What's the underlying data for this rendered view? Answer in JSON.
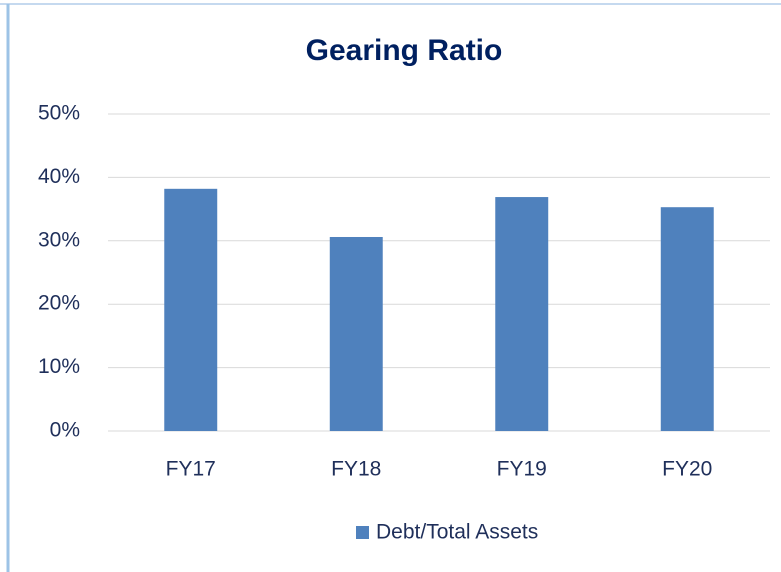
{
  "chart_data": {
    "type": "bar",
    "title": "Gearing Ratio",
    "categories": [
      "FY17",
      "FY18",
      "FY19",
      "FY20"
    ],
    "series": [
      {
        "name": "Debt/Total Assets",
        "color": "#4f81bd",
        "values": [
          38.2,
          30.6,
          36.9,
          35.3
        ]
      }
    ],
    "ylim": [
      0,
      50
    ],
    "yticks": [
      {
        "value": 0,
        "label": "0%"
      },
      {
        "value": 10,
        "label": "10%"
      },
      {
        "value": 20,
        "label": "20%"
      },
      {
        "value": 30,
        "label": "30%"
      },
      {
        "value": 40,
        "label": "40%"
      },
      {
        "value": 50,
        "label": "50%"
      }
    ],
    "grid": true,
    "legend": "bottom"
  }
}
